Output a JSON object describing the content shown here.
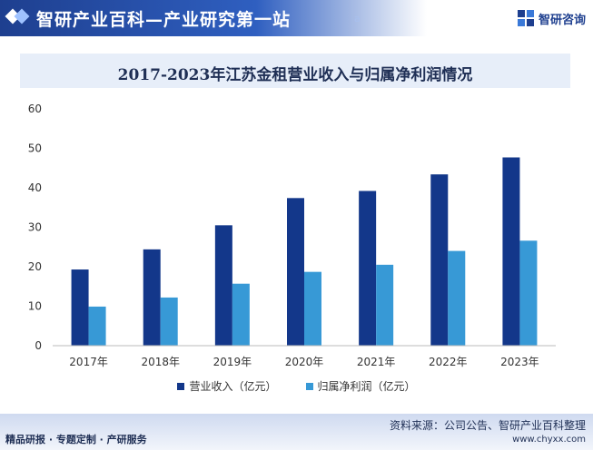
{
  "header": {
    "title": "智研产业百科—产业研究第一站",
    "tag": "a",
    "brand": "智研咨询"
  },
  "footer": {
    "source": "资料来源：公司公告、智研产业百科整理",
    "left": "精品研报 · 专题定制 · 产研服务",
    "url": "www.chyxx.com"
  },
  "colors": {
    "series1": "#13378a",
    "series2": "#3799d6",
    "header": "#1e3f8f"
  },
  "chart_data": {
    "type": "bar",
    "title": "2017-2023年江苏金租营业收入与归属净利润情况",
    "categories": [
      "2017年",
      "2018年",
      "2019年",
      "2020年",
      "2021年",
      "2022年",
      "2023年"
    ],
    "series": [
      {
        "name": "营业收入（亿元）",
        "values": [
          19.3,
          24.4,
          30.5,
          37.4,
          39.2,
          43.4,
          47.7
        ]
      },
      {
        "name": "归属净利润（亿元）",
        "values": [
          9.9,
          12.2,
          15.7,
          18.7,
          20.5,
          24.0,
          26.6
        ]
      }
    ],
    "yticks": [
      "0",
      "10",
      "20",
      "30",
      "40",
      "50",
      "60"
    ],
    "ylim": [
      0,
      60
    ],
    "legend": "bottom",
    "grid": false
  }
}
